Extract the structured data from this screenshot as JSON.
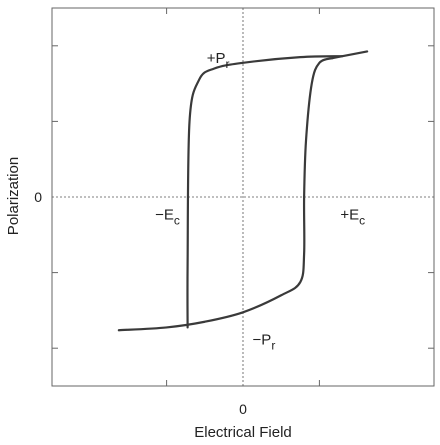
{
  "chart_data": {
    "type": "line",
    "title": "",
    "xlabel": "Electrical Field",
    "ylabel": "Polarization",
    "x_tick_labels": [
      "0"
    ],
    "y_tick_labels": [
      "0"
    ],
    "xlim": [
      -1.0,
      1.0
    ],
    "ylim": [
      -1.0,
      1.0
    ],
    "grid": false,
    "origin_crosshair": true,
    "line_color": "#3a3a3a",
    "annotations": [
      {
        "id": "pr-pos",
        "text": "+P",
        "sub": "r",
        "x": -0.19,
        "y": 0.71
      },
      {
        "id": "pr-neg",
        "text": "−P",
        "sub": "r",
        "x": 0.05,
        "y": -0.78
      },
      {
        "id": "ec-neg",
        "text": "−E",
        "sub": "c",
        "x": -0.46,
        "y": -0.12
      },
      {
        "id": "ec-pos",
        "text": "+E",
        "sub": "c",
        "x": 0.51,
        "y": -0.12
      }
    ],
    "series": [
      {
        "id": "upper-branch",
        "x": [
          -0.29,
          -0.29,
          -0.28,
          -0.23,
          -0.15,
          0.0,
          0.3,
          0.52
        ],
        "y": [
          -0.69,
          -0.35,
          0.4,
          0.62,
          0.68,
          0.71,
          0.74,
          0.745
        ]
      },
      {
        "id": "lower-branch",
        "x": [
          0.47,
          0.4,
          0.36,
          0.33,
          0.32,
          0.32,
          0.3,
          0.2,
          0.0,
          -0.2,
          -0.4,
          -0.65
        ],
        "y": [
          0.735,
          0.71,
          0.6,
          0.3,
          0.0,
          -0.3,
          -0.45,
          -0.52,
          -0.61,
          -0.66,
          -0.69,
          -0.705
        ]
      },
      {
        "id": "upper-tail",
        "x": [
          0.47,
          0.52,
          0.65
        ],
        "y": [
          0.735,
          0.745,
          0.77
        ]
      }
    ]
  }
}
